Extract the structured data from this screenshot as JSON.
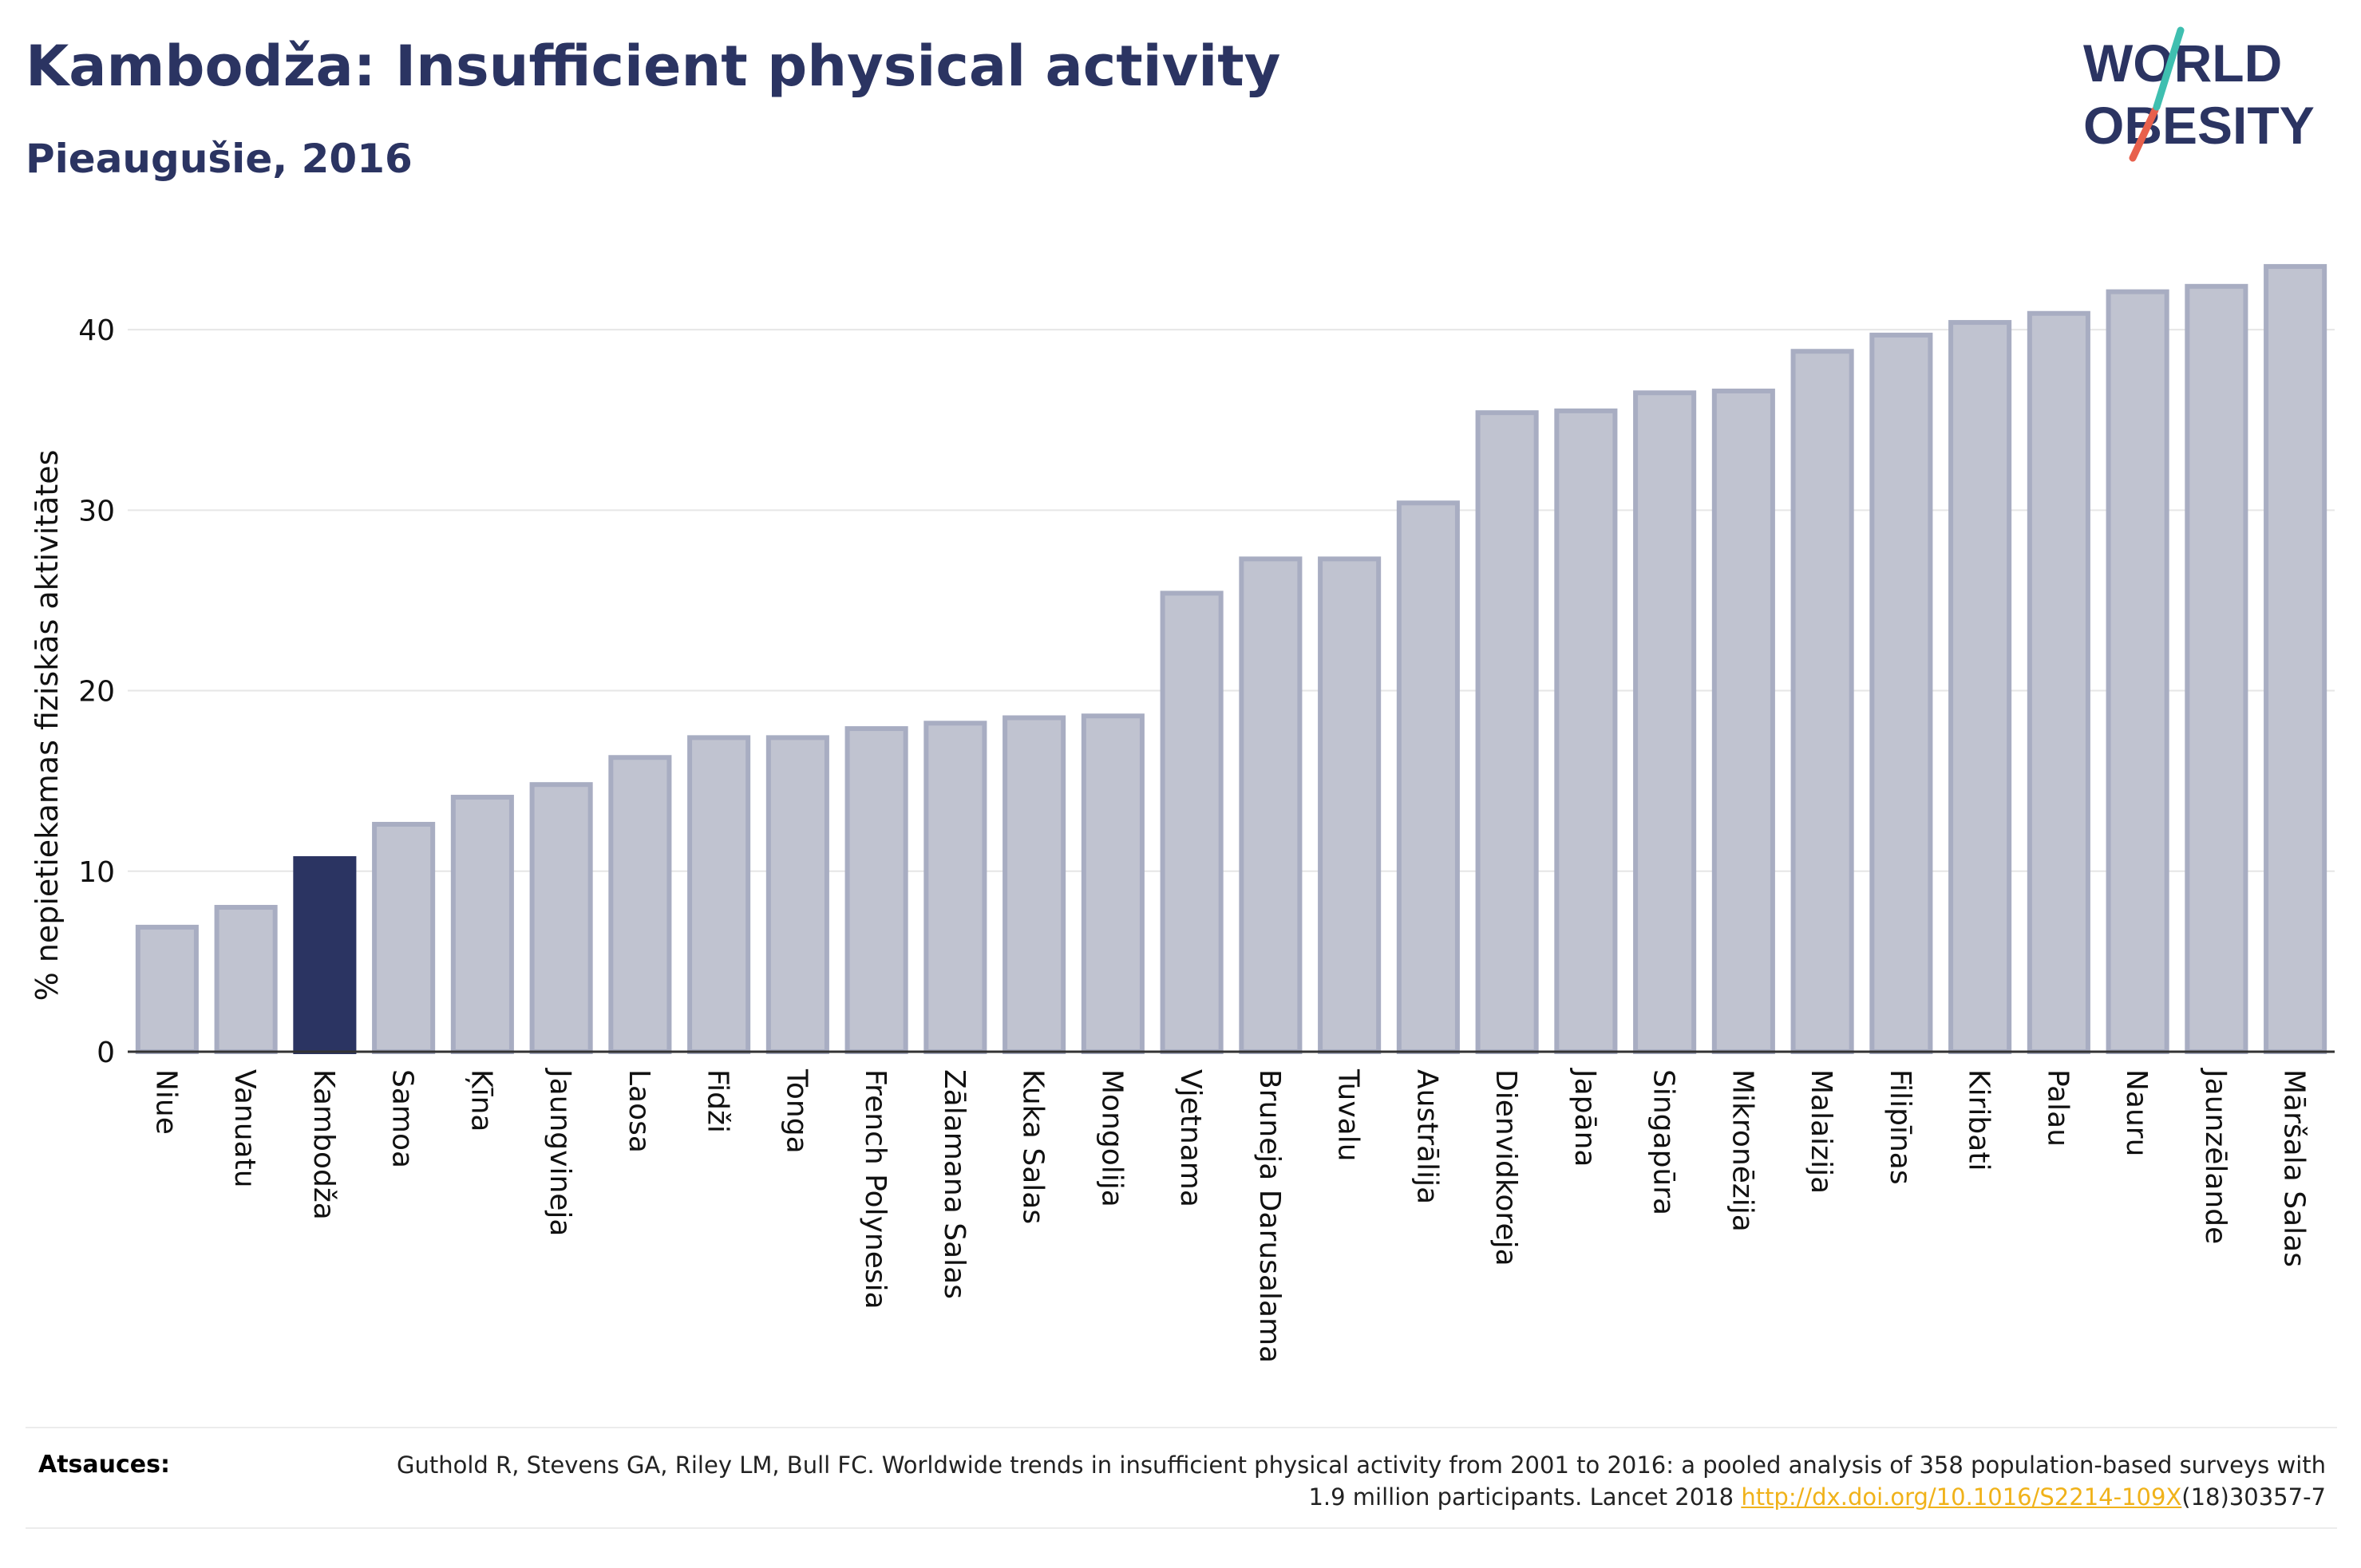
{
  "header": {
    "title": "Kambodža: Insufficient physical activity",
    "subtitle": "Pieaugušie, 2016"
  },
  "logo": {
    "line1": "WORLD",
    "line2": "OBESITY"
  },
  "chart_data": {
    "type": "bar",
    "ylabel": "% nepietiekamas fiziskās aktivitātes",
    "xlabel": "",
    "ylim": [
      0,
      45
    ],
    "yticks": [
      0,
      10,
      20,
      30,
      40
    ],
    "grid": true,
    "highlight": "Kambodža",
    "categories": [
      "Niue",
      "Vanuatu",
      "Kambodža",
      "Samoa",
      "Ķīna",
      "Jaungvineja",
      "Laosa",
      "Fidži",
      "Tonga",
      "French Polynesia",
      "Zālamana Salas",
      "Kuka Salas",
      "Mongolija",
      "Vjetnama",
      "Bruneja Darusalama",
      "Tuvalu",
      "Austrālija",
      "Dienvidkoreja",
      "Japāna",
      "Singapūra",
      "Mikronēzija",
      "Malaizija",
      "Filipīnas",
      "Kiribati",
      "Palau",
      "Nauru",
      "Jaunzēlande",
      "Māršala Salas"
    ],
    "values": [
      6.9,
      8.0,
      10.7,
      12.6,
      14.1,
      14.8,
      16.3,
      17.4,
      17.4,
      17.9,
      18.2,
      18.5,
      18.6,
      25.4,
      27.3,
      27.3,
      30.4,
      35.4,
      35.5,
      36.5,
      36.6,
      38.8,
      39.7,
      40.4,
      40.9,
      42.1,
      42.4,
      43.5
    ],
    "colors": {
      "bar": "#c0c3d0",
      "bar_stroke": "#a8adc2",
      "highlight": "#2b3462"
    }
  },
  "footer": {
    "label": "Atsauces:",
    "text_before": "Guthold R, Stevens GA, Riley LM, Bull FC. Worldwide trends in insufficient physical activity from 2001 to 2016: a pooled analysis of 358 population-based surveys with 1.9 million participants. Lancet 2018 ",
    "link_text": "http://dx.doi.org/10.1016/S2214-109X",
    "text_after": "(18)30357-7"
  }
}
